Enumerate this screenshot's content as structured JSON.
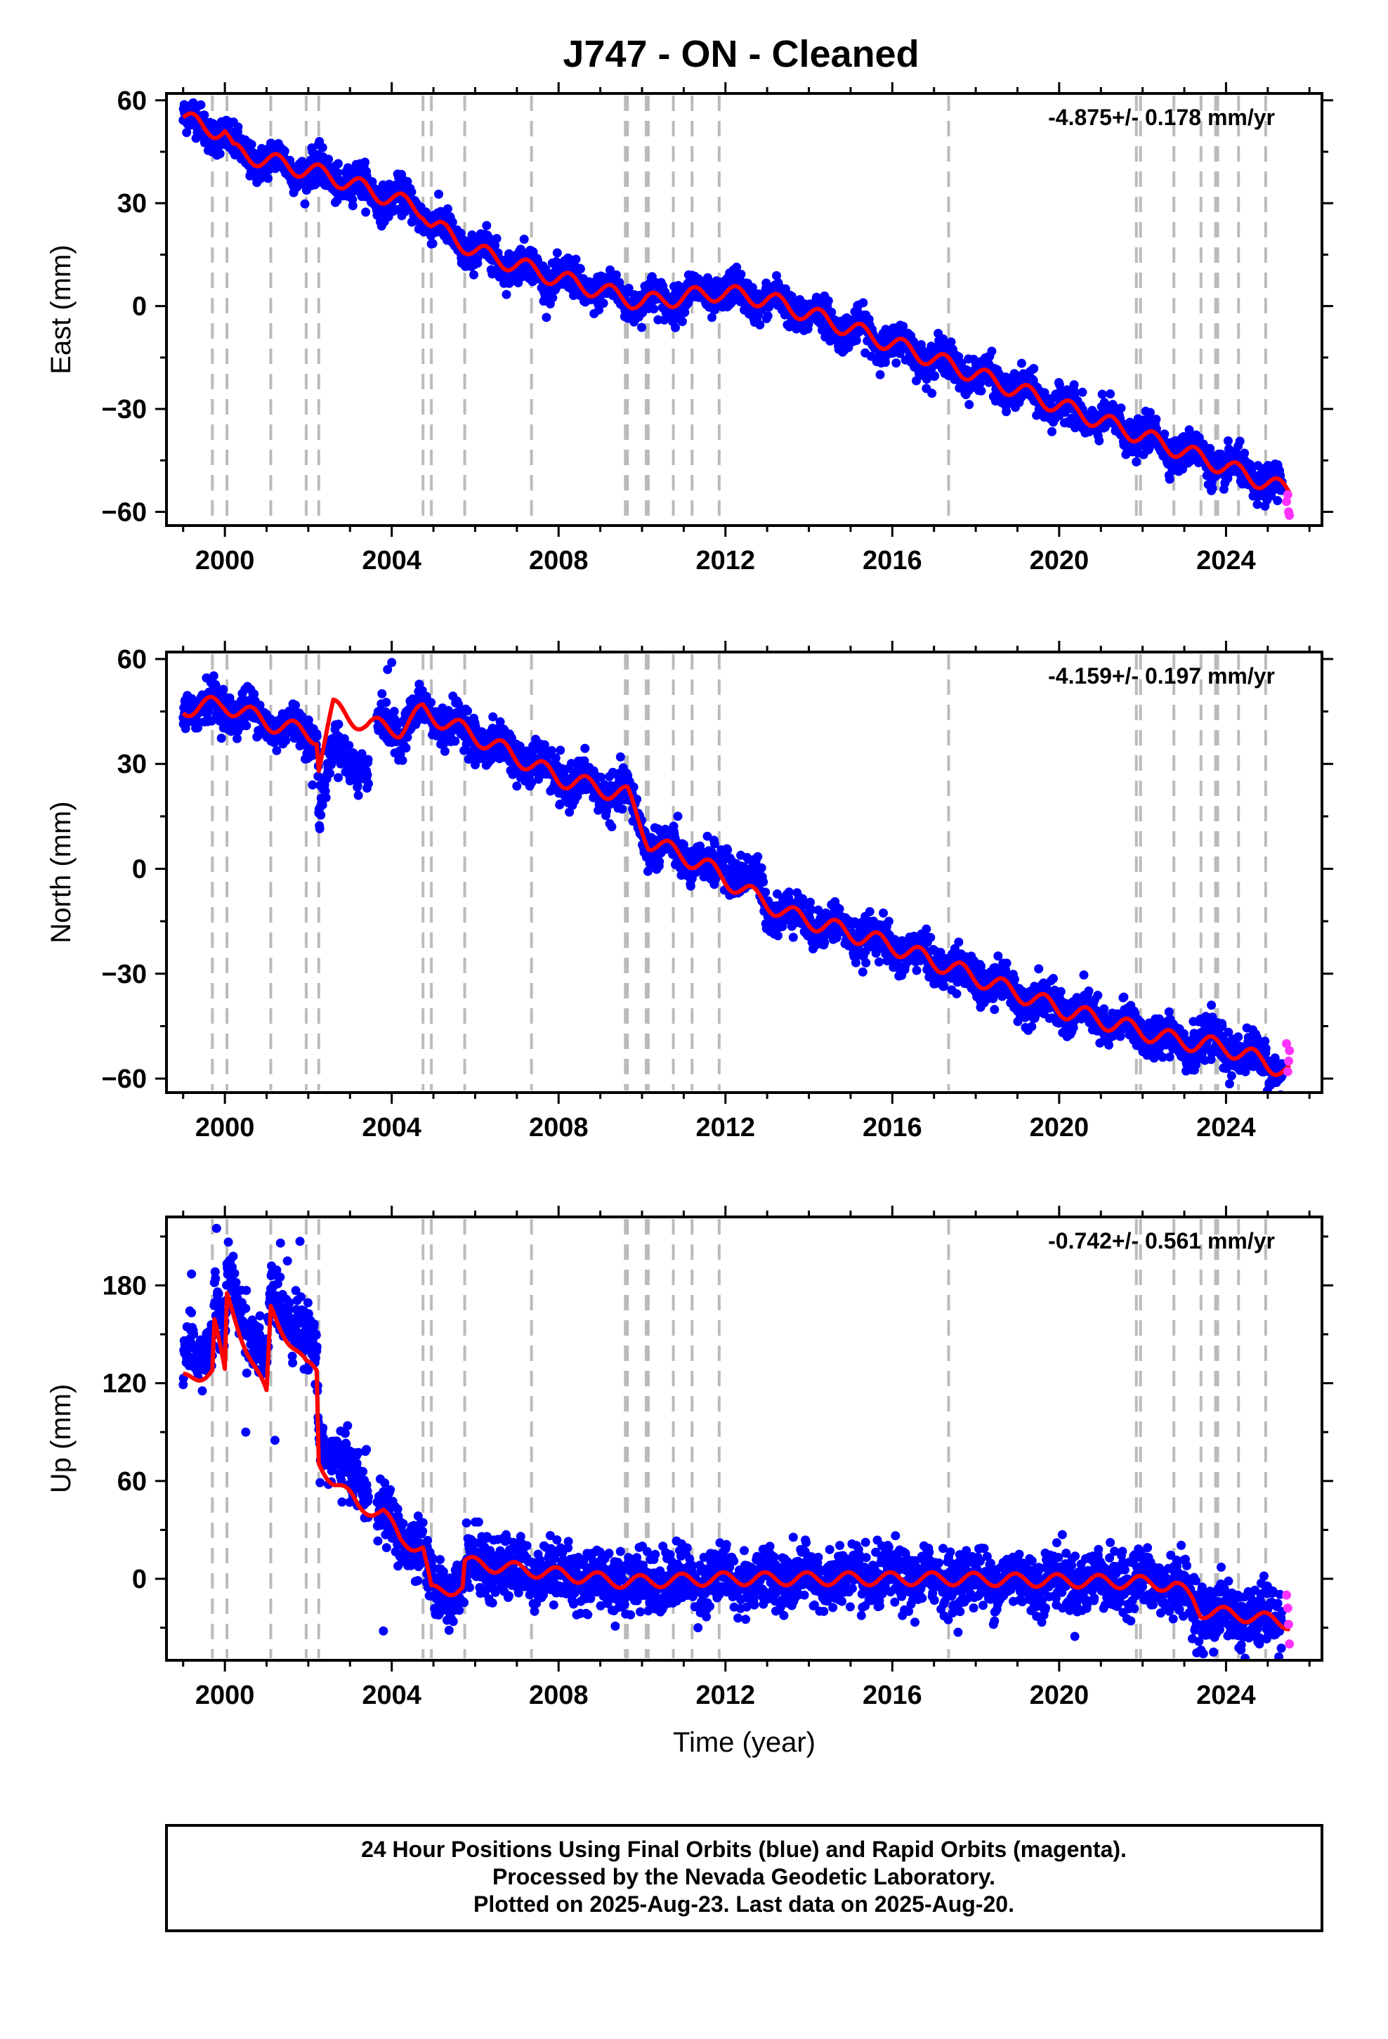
{
  "title": "J747  - ON - Cleaned",
  "footer": {
    "line1": "24 Hour Positions Using Final Orbits (blue) and Rapid Orbits (magenta).",
    "line2": "Processed by the Nevada Geodetic Laboratory.",
    "line3": "Plotted on 2025-Aug-23. Last data on 2025-Aug-20."
  },
  "colors": {
    "final_orbits": "#0000ff",
    "rapid_orbits": "#ff33ff",
    "model": "#ff0000",
    "breaks": "#bbbbbb"
  },
  "chart_data": [
    {
      "type": "scatter",
      "component": "East",
      "xlabel": "",
      "ylabel": "East (mm)",
      "xlim": [
        1998.6,
        2026.3
      ],
      "ylim": [
        -64,
        62
      ],
      "xticks": [
        2000,
        2004,
        2008,
        2012,
        2016,
        2020,
        2024
      ],
      "yticks": [
        -60,
        -30,
        0,
        30,
        60
      ],
      "rate_label": "-4.875+/- 0.178 mm/yr",
      "breaks": [
        1999.7,
        2000.05,
        2001.1,
        2001.95,
        2002.25,
        2004.75,
        2004.95,
        2005.75,
        2007.35,
        2009.6,
        2009.65,
        2010.1,
        2010.15,
        2010.75,
        2011.2,
        2011.85,
        2017.35,
        2021.85,
        2021.95,
        2022.75,
        2023.4,
        2023.75,
        2023.8,
        2024.3,
        2024.95
      ],
      "model_knots": [
        [
          1999.0,
          55
        ],
        [
          1999.5,
          52
        ],
        [
          2000.0,
          51
        ],
        [
          2000.2,
          45
        ],
        [
          2001.5,
          41
        ],
        [
          2002.5,
          38
        ],
        [
          2004.75,
          28
        ],
        [
          2004.95,
          24
        ],
        [
          2006.0,
          16
        ],
        [
          2008.0,
          8
        ],
        [
          2010.0,
          1
        ],
        [
          2011.85,
          4
        ],
        [
          2013.0,
          2
        ],
        [
          2016.0,
          -11
        ],
        [
          2020.0,
          -29
        ],
        [
          2024.0,
          -47
        ],
        [
          2025.5,
          -54
        ]
      ],
      "seasonal_amp": 2.5,
      "seasonal_phase": 0.0,
      "blue_end": 2025.35,
      "scatter": 2.5,
      "gaps": [],
      "outliers": [],
      "magenta": [
        [
          2025.45,
          -57
        ],
        [
          2025.5,
          -60
        ],
        [
          2025.52,
          -61
        ],
        [
          2025.48,
          -55
        ]
      ]
    },
    {
      "type": "scatter",
      "component": "North",
      "xlabel": "",
      "ylabel": "North (mm)",
      "xlim": [
        1998.6,
        2026.3
      ],
      "ylim": [
        -64,
        62
      ],
      "xticks": [
        2000,
        2004,
        2008,
        2012,
        2016,
        2020,
        2024
      ],
      "yticks": [
        -60,
        -30,
        0,
        30,
        60
      ],
      "rate_label": "-4.159+/- 0.197 mm/yr",
      "breaks": [
        1999.7,
        2000.05,
        2001.1,
        2001.95,
        2002.25,
        2004.75,
        2004.95,
        2005.75,
        2007.35,
        2009.6,
        2009.65,
        2010.1,
        2010.15,
        2010.75,
        2011.2,
        2011.85,
        2017.35,
        2021.85,
        2021.95,
        2022.75,
        2023.4,
        2023.75,
        2023.8,
        2024.3,
        2024.95
      ],
      "model_knots": [
        [
          1999.0,
          46
        ],
        [
          2000.0,
          47
        ],
        [
          2001.0,
          42
        ],
        [
          2002.2,
          38
        ],
        [
          2002.25,
          30
        ],
        [
          2002.6,
          46
        ],
        [
          2003.4,
          41
        ],
        [
          2004.2,
          40
        ],
        [
          2004.75,
          45
        ],
        [
          2006.0,
          38
        ],
        [
          2008.0,
          26
        ],
        [
          2009.65,
          21
        ],
        [
          2010.15,
          8
        ],
        [
          2011.5,
          1
        ],
        [
          2012.4,
          -6
        ],
        [
          2013.5,
          -13
        ],
        [
          2016.0,
          -22
        ],
        [
          2020.0,
          -40
        ],
        [
          2022.75,
          -49
        ],
        [
          2024.0,
          -51
        ],
        [
          2025.5,
          -58
        ]
      ],
      "seasonal_amp": 2.5,
      "seasonal_phase": 0.6,
      "blue_end": 2025.35,
      "scatter": 2.8,
      "gaps": [
        [
          2003.45,
          2003.65
        ]
      ],
      "segment_offsets": [
        [
          2002.25,
          2003.45,
          -12
        ],
        [
          2011.85,
          2012.9,
          4
        ]
      ],
      "outliers": [
        [
          2004.0,
          59
        ],
        [
          2003.9,
          57
        ],
        [
          2002.1,
          24
        ],
        [
          2003.2,
          21
        ]
      ],
      "magenta": [
        [
          2025.45,
          -50
        ],
        [
          2025.5,
          -55
        ],
        [
          2025.52,
          -52
        ],
        [
          2025.48,
          -58
        ]
      ]
    },
    {
      "type": "scatter",
      "component": "Up",
      "xlabel": "Time (year)",
      "ylabel": "Up (mm)",
      "xlim": [
        1998.6,
        2026.3
      ],
      "ylim": [
        -50,
        222
      ],
      "xticks": [
        2000,
        2004,
        2008,
        2012,
        2016,
        2020,
        2024
      ],
      "yticks": [
        0,
        60,
        120,
        180
      ],
      "rate_label": "-0.742+/- 0.561 mm/yr",
      "breaks": [
        1999.7,
        2000.05,
        2001.1,
        2001.95,
        2002.25,
        2004.75,
        2004.95,
        2005.75,
        2007.35,
        2009.6,
        2009.65,
        2010.1,
        2010.15,
        2010.75,
        2011.2,
        2011.85,
        2017.35,
        2021.85,
        2021.95,
        2022.75,
        2023.4,
        2023.75,
        2023.8,
        2024.3,
        2024.95
      ],
      "model_knots": [
        [
          1999.0,
          122
        ],
        [
          1999.7,
          128
        ],
        [
          1999.75,
          158
        ],
        [
          2000.0,
          125
        ],
        [
          2000.05,
          172
        ],
        [
          2001.0,
          112
        ],
        [
          2001.1,
          165
        ],
        [
          2001.95,
          130
        ],
        [
          2002.2,
          128
        ],
        [
          2002.25,
          72
        ],
        [
          2002.6,
          60
        ],
        [
          2003.2,
          45
        ],
        [
          2003.8,
          40
        ],
        [
          2004.2,
          25
        ],
        [
          2004.75,
          18
        ],
        [
          2004.95,
          -8
        ],
        [
          2005.7,
          -5
        ],
        [
          2005.75,
          10
        ],
        [
          2007.35,
          5
        ],
        [
          2009.6,
          -2
        ],
        [
          2011.85,
          0
        ],
        [
          2017.35,
          0
        ],
        [
          2021.85,
          -2
        ],
        [
          2022.75,
          -4
        ],
        [
          2023.2,
          -12
        ],
        [
          2023.4,
          -20
        ],
        [
          2024.3,
          -22
        ],
        [
          2025.5,
          -27
        ]
      ],
      "seasonal_amp": 4,
      "seasonal_phase": 0.3,
      "blue_end": 2025.35,
      "scatter": 9,
      "gaps": [
        [
          2003.45,
          2003.65
        ]
      ],
      "segment_offsets": [
        [
          1999.0,
          2003.45,
          15
        ]
      ],
      "outliers": [
        [
          1999.8,
          215
        ],
        [
          2001.8,
          207
        ],
        [
          2001.5,
          195
        ],
        [
          1999.2,
          187
        ],
        [
          2000.5,
          90
        ],
        [
          2001.2,
          85
        ],
        [
          2003.8,
          -32
        ],
        [
          2023.7,
          -45
        ],
        [
          2024.8,
          -40
        ],
        [
          2008.7,
          -22
        ],
        [
          2010.5,
          20
        ],
        [
          2006.1,
          22
        ]
      ],
      "magenta": [
        [
          2025.45,
          -10
        ],
        [
          2025.5,
          -28
        ],
        [
          2025.52,
          -40
        ],
        [
          2025.48,
          -18
        ]
      ]
    }
  ]
}
